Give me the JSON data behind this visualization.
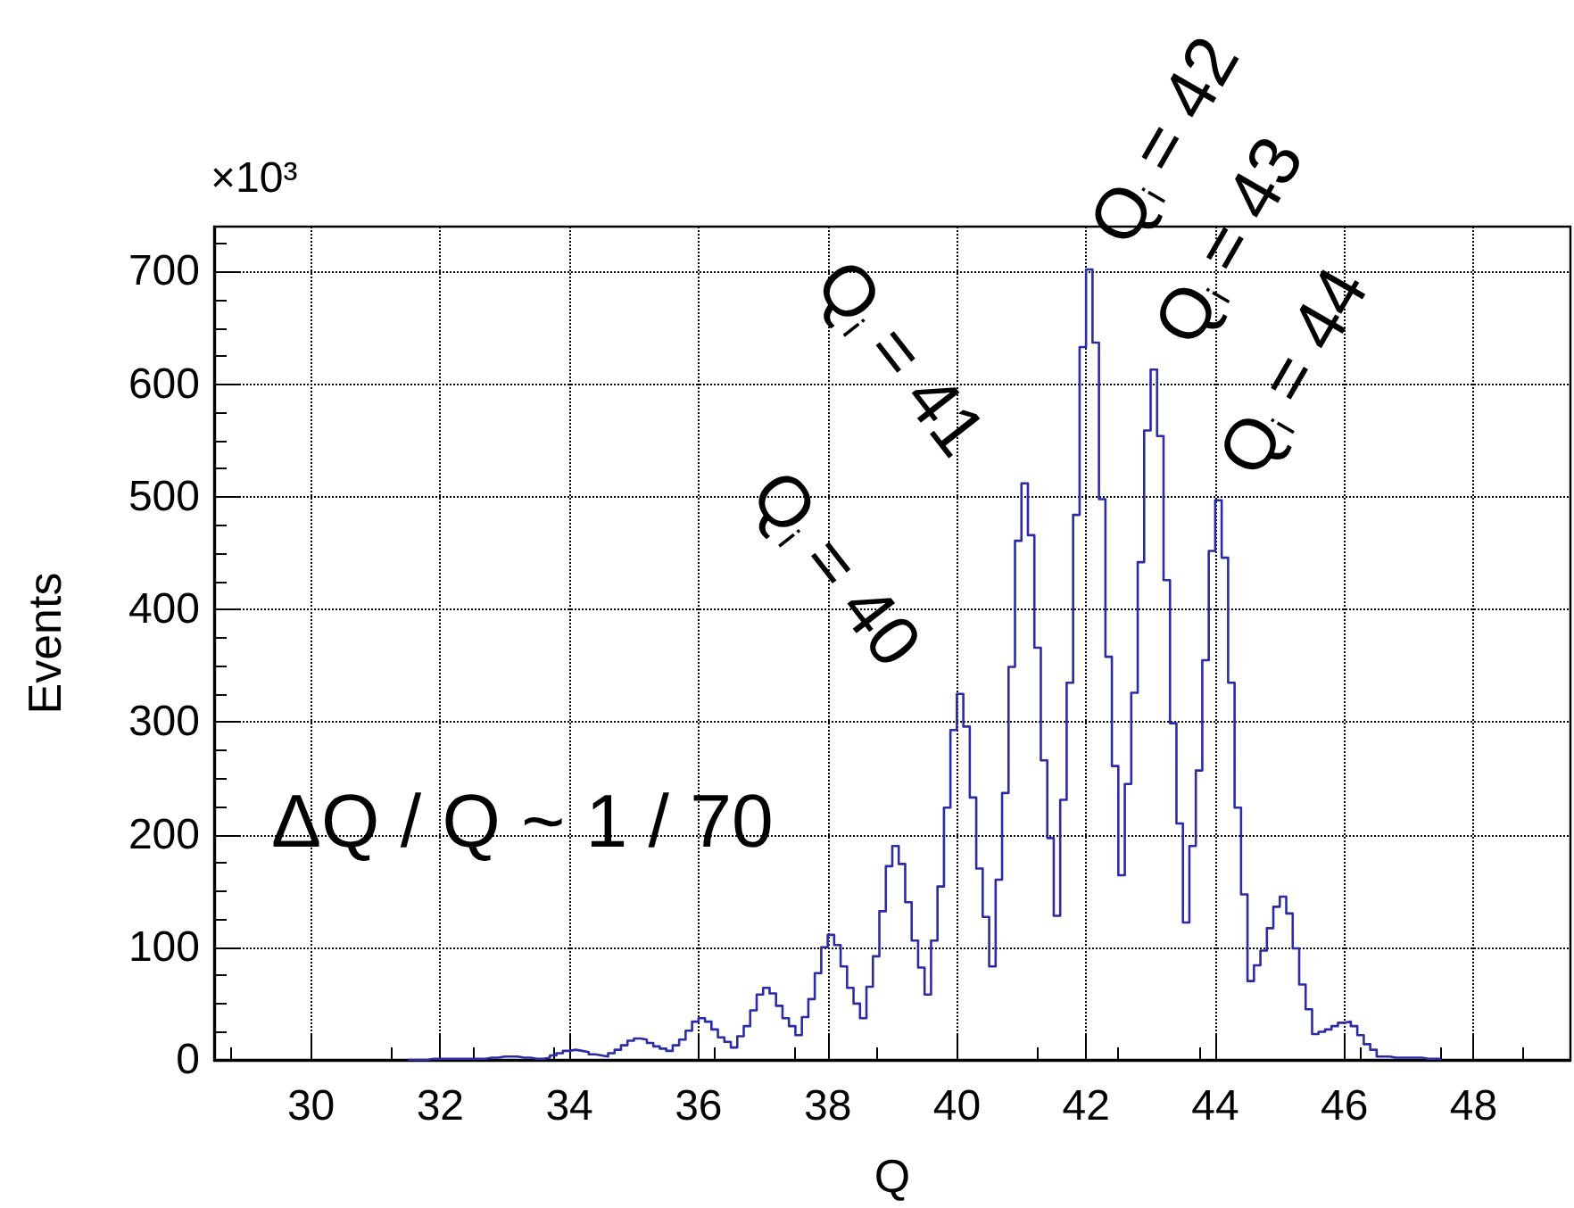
{
  "chart_data": {
    "type": "histogram",
    "xlabel": "Q",
    "ylabel": "Events",
    "color": "#2b2ba6",
    "xlim": [
      28.5,
      49.5
    ],
    "xticks": [
      30,
      32,
      34,
      36,
      38,
      40,
      42,
      44,
      46,
      48
    ],
    "ylim": [
      0,
      740
    ],
    "yticks": [
      0,
      100,
      200,
      300,
      400,
      500,
      600,
      700
    ],
    "grid": true,
    "bins": [
      31.5,
      31.6,
      31.7,
      31.8,
      31.9,
      32.0,
      32.1,
      32.2,
      32.3,
      32.4,
      32.5,
      32.6,
      32.7,
      32.8,
      32.9,
      33.0,
      33.1,
      33.2,
      33.3,
      33.4,
      33.5,
      33.6,
      33.7,
      33.8,
      33.9,
      34.0,
      34.1,
      34.2,
      34.3,
      34.4,
      34.5,
      34.6,
      34.7,
      34.8,
      34.9,
      35.0,
      35.1,
      35.2,
      35.3,
      35.4,
      35.5,
      35.6,
      35.7,
      35.8,
      35.9,
      36.0,
      36.1,
      36.2,
      36.3,
      36.4,
      36.5,
      36.6,
      36.7,
      36.8,
      36.9,
      37.0,
      37.1,
      37.2,
      37.3,
      37.4,
      37.5,
      37.6,
      37.7,
      37.8,
      37.9,
      38.0,
      38.1,
      38.2,
      38.3,
      38.4,
      38.5,
      38.6,
      38.7,
      38.8,
      38.9,
      39.0,
      39.1,
      39.2,
      39.3,
      39.4,
      39.5,
      39.6,
      39.7,
      39.8,
      39.9,
      40.0,
      40.1,
      40.2,
      40.3,
      40.4,
      40.5,
      40.6,
      40.7,
      40.8,
      40.9,
      41.0,
      41.1,
      41.2,
      41.3,
      41.4,
      41.5,
      41.6,
      41.7,
      41.8,
      41.9,
      42.0,
      42.1,
      42.2,
      42.3,
      42.4,
      42.5,
      42.6,
      42.7,
      42.8,
      42.9,
      43.0,
      43.1,
      43.2,
      43.3,
      43.4,
      43.5,
      43.6,
      43.7,
      43.8,
      43.9,
      44.0,
      44.1,
      44.2,
      44.3,
      44.4,
      44.5,
      44.6,
      44.7,
      44.8,
      44.9,
      45.0,
      45.1,
      45.2,
      45.3,
      45.4,
      45.5,
      45.6,
      45.7,
      45.8,
      45.9,
      46.0,
      46.1,
      46.2,
      46.3,
      46.4,
      46.5,
      46.6,
      46.7,
      46.8,
      46.9,
      47.0,
      47.1,
      47.2,
      47.3,
      47.4,
      47.5
    ],
    "values": [
      0,
      0,
      0,
      1,
      1,
      1,
      1,
      1,
      1,
      1,
      1,
      1,
      2,
      2,
      3,
      3,
      3,
      2,
      2,
      1,
      1,
      2,
      4,
      6,
      8,
      9,
      8,
      7,
      5,
      4,
      3,
      6,
      9,
      13,
      17,
      19,
      18,
      15,
      12,
      10,
      8,
      13,
      18,
      26,
      34,
      37,
      34,
      27,
      20,
      16,
      11,
      21,
      30,
      44,
      58,
      64,
      59,
      48,
      37,
      30,
      22,
      38,
      54,
      77,
      100,
      111,
      102,
      83,
      64,
      50,
      37,
      65,
      92,
      132,
      172,
      190,
      174,
      140,
      106,
      82,
      58,
      106,
      154,
      224,
      293,
      325,
      296,
      233,
      170,
      127,
      83,
      160,
      237,
      349,
      461,
      512,
      466,
      366,
      266,
      197,
      128,
      231,
      335,
      484,
      633,
      702,
      637,
      498,
      358,
      261,
      164,
      245,
      326,
      442,
      559,
      613,
      554,
      426,
      299,
      210,
      122,
      190,
      257,
      355,
      452,
      497,
      446,
      335,
      224,
      147,
      70,
      84,
      97,
      117,
      136,
      145,
      130,
      99,
      67,
      45,
      23,
      25,
      27,
      30,
      33,
      34,
      30,
      22,
      14,
      9,
      3,
      3,
      2,
      2,
      2,
      2,
      2,
      1,
      1,
      1
    ],
    "annotations": [
      "×10³",
      "ΔQ / Q ~ 1 / 70",
      {
        "text": "Q$_{i}$ = 40",
        "x": 40,
        "y": 325
      },
      {
        "text": "Q$_{i}$ = 41",
        "x": 41,
        "y": 512
      },
      {
        "text": "Q$_{i}$ = 42",
        "x": 42,
        "y": 702
      },
      {
        "text": "Q$_{i}$ = 43",
        "x": 43,
        "y": 613
      },
      {
        "text": "Q$_{i}$ = 44",
        "x": 44,
        "y": 497
      }
    ]
  }
}
